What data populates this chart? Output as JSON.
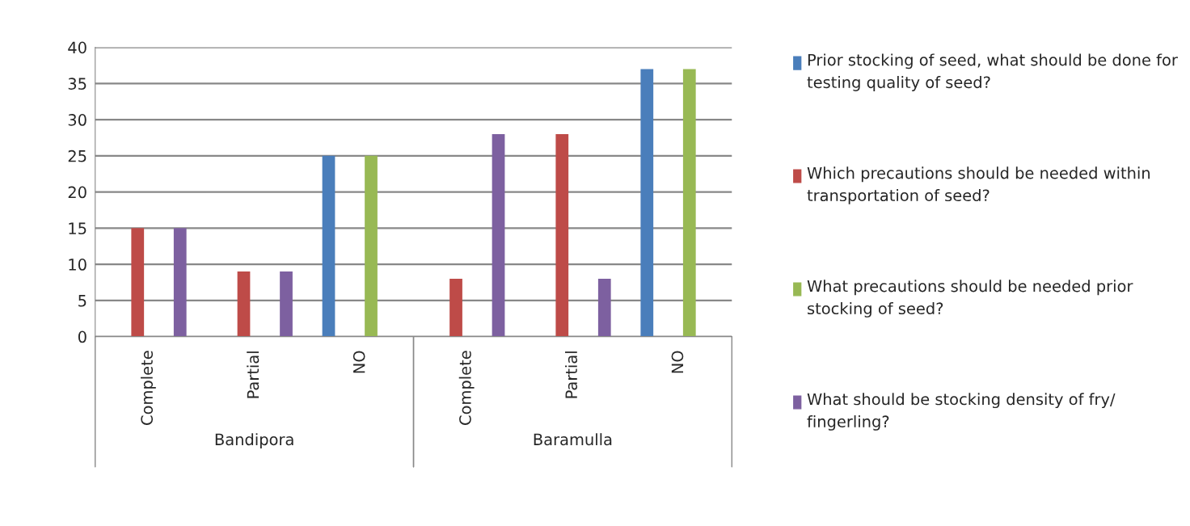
{
  "chart_data": {
    "type": "bar",
    "categories": [
      "Complete",
      "Partial",
      "NO",
      "Complete",
      "Partial",
      "NO"
    ],
    "series": [
      {
        "name": "Prior stocking of seed, what should be done for testing quality of seed?",
        "color": "#4a7ebb",
        "values": [
          0,
          0,
          25,
          0,
          0,
          37
        ]
      },
      {
        "name": "Which precautions should be needed within transportation of seed?",
        "color": "#be4b48",
        "values": [
          15,
          9,
          0,
          8,
          28,
          0
        ]
      },
      {
        "name": "What precautions should be needed prior stocking of seed?",
        "color": "#98b954",
        "values": [
          0,
          0,
          25,
          0,
          0,
          37
        ]
      },
      {
        "name": "What should be stocking density of fry/ fingerling?",
        "color": "#7d60a0",
        "values": [
          15,
          9,
          0,
          28,
          8,
          0
        ]
      }
    ],
    "annotations": [
      "Bandipora",
      "Baramulla"
    ],
    "ylim": [
      0,
      40
    ],
    "yticks": [
      0,
      5,
      10,
      15,
      20,
      25,
      30,
      35,
      40
    ],
    "grid": "y",
    "legend": "right"
  }
}
